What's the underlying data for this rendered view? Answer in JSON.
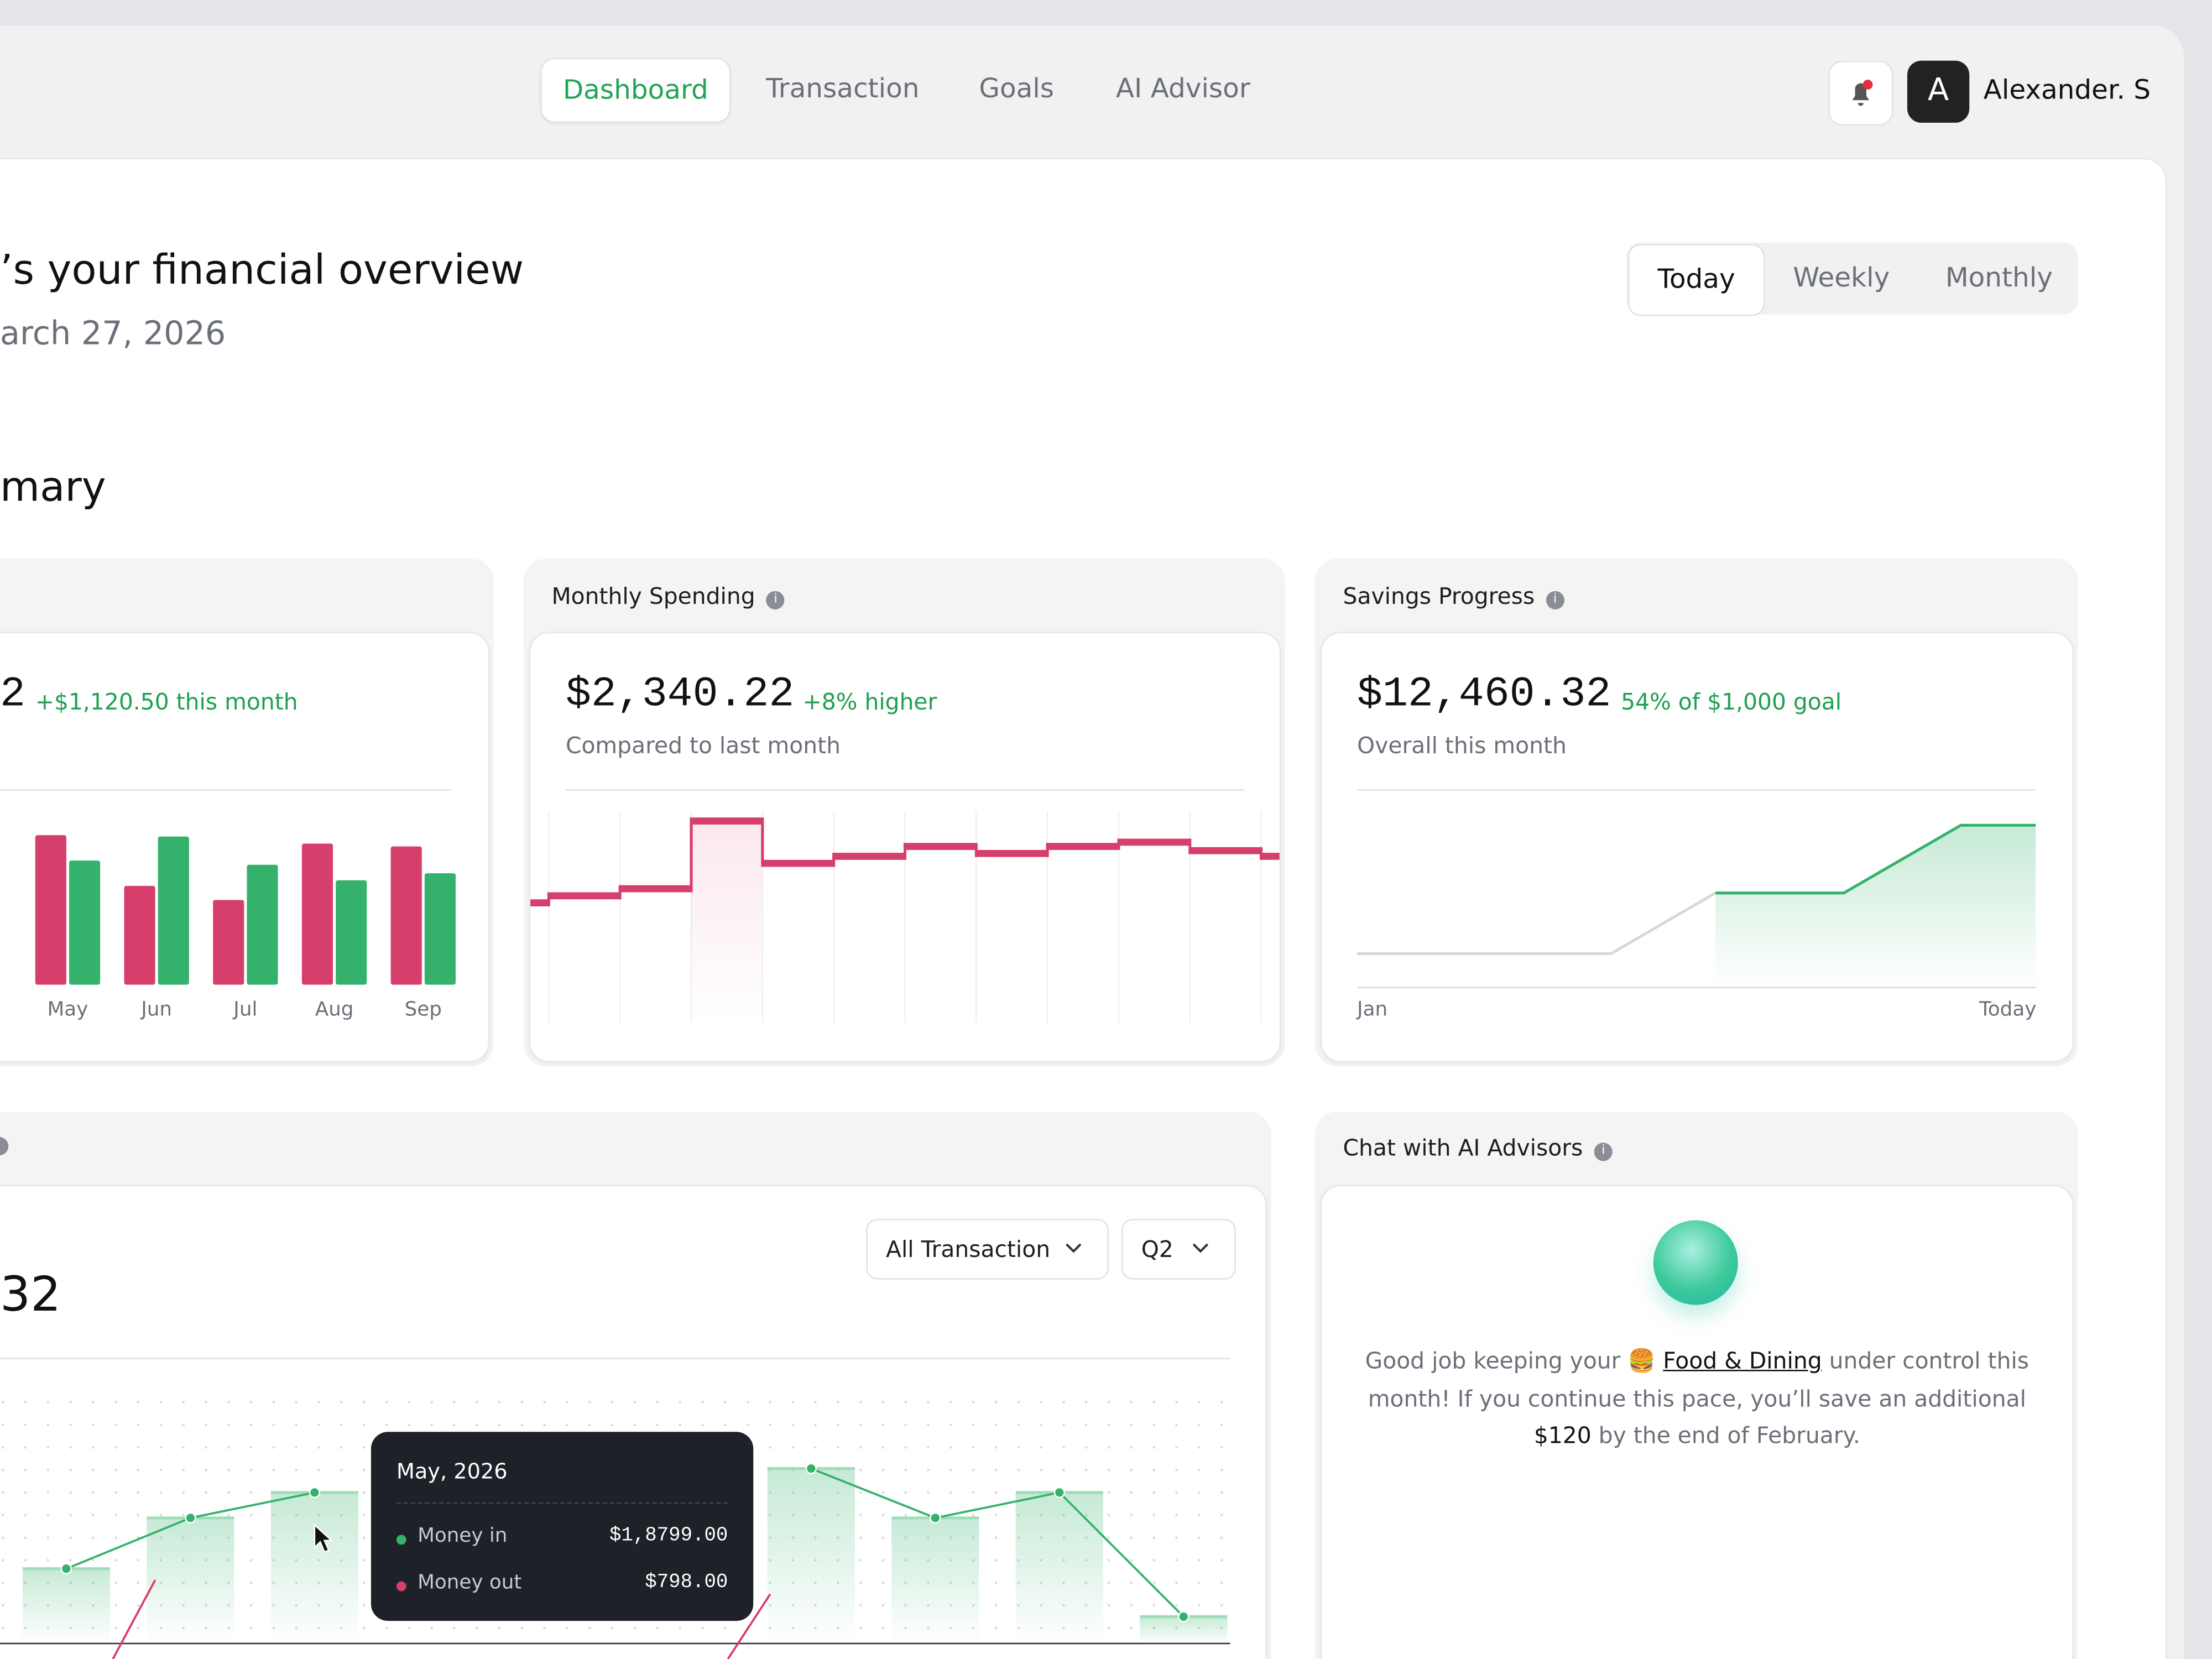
{
  "nav": {
    "tabs": [
      "Dashboard",
      "Transaction",
      "Goals",
      "AI Advisor"
    ],
    "active": 0,
    "user": {
      "initial": "A",
      "name": "Alexander. S"
    }
  },
  "header": {
    "title": "’s your financial overview",
    "date": "arch 27, 2026"
  },
  "periods": {
    "options": [
      "Today",
      "Weekly",
      "Monthly"
    ],
    "active": 0
  },
  "section_title": "mary",
  "income": {
    "amount": "2",
    "change": "+$1,120.50 this month",
    "chart_data": {
      "type": "bar",
      "categories": [
        "May",
        "Jun",
        "Jul",
        "Aug",
        "Sep"
      ],
      "series": [
        {
          "color": "#d63f6b",
          "values": [
            106,
            70,
            60,
            100,
            98
          ]
        },
        {
          "color": "#34b26c",
          "values": [
            88,
            105,
            85,
            74,
            79
          ]
        }
      ],
      "ylim": [
        0,
        130
      ]
    }
  },
  "spending": {
    "title": "Monthly Spending",
    "amount": "$2,340.22",
    "change": "+8% higher",
    "subtitle": "Compared to last month",
    "chart_data": {
      "type": "step",
      "color": "#d63f6b",
      "values": [
        85,
        90,
        95,
        143,
        113,
        118,
        125,
        120,
        125,
        128,
        122,
        118
      ],
      "highlight": 3,
      "ylim": [
        0,
        165
      ]
    }
  },
  "savings": {
    "title": "Savings Progress",
    "amount": "$12,460.32",
    "change": "54% of $1,000 goal",
    "subtitle": "Overall this month",
    "chart_data": {
      "type": "line",
      "color": "#34b26c",
      "categories": [
        "Jan",
        null,
        null,
        null,
        null,
        "Today"
      ],
      "values": [
        24,
        24,
        67,
        67,
        115,
        115
      ],
      "ylim": [
        0,
        140
      ]
    }
  },
  "transactions": {
    "amount": " 32",
    "filters": [
      "All Transaction",
      "Q2"
    ],
    "chart_data": {
      "type": "bar-line",
      "color": "#34b26c",
      "values": [
        53,
        89,
        107,
        null,
        null,
        null,
        124,
        89,
        107,
        19
      ],
      "ylim": [
        0,
        180
      ]
    },
    "tooltip": {
      "title": "May, 2026",
      "rows": [
        {
          "label": "Money in",
          "value": "$1,8799.00",
          "color": "#34b26c"
        },
        {
          "label": "Money out",
          "value": "$798.00",
          "color": "#d63f6b"
        }
      ]
    }
  },
  "advisor": {
    "title": "Chat with AI Advisors",
    "message": [
      "Good job keeping your ",
      "🍔 ",
      "Food & Dining",
      " under control this month! If you continue this pace, you’ll save an additional ",
      "$120",
      " by the end of February."
    ]
  }
}
